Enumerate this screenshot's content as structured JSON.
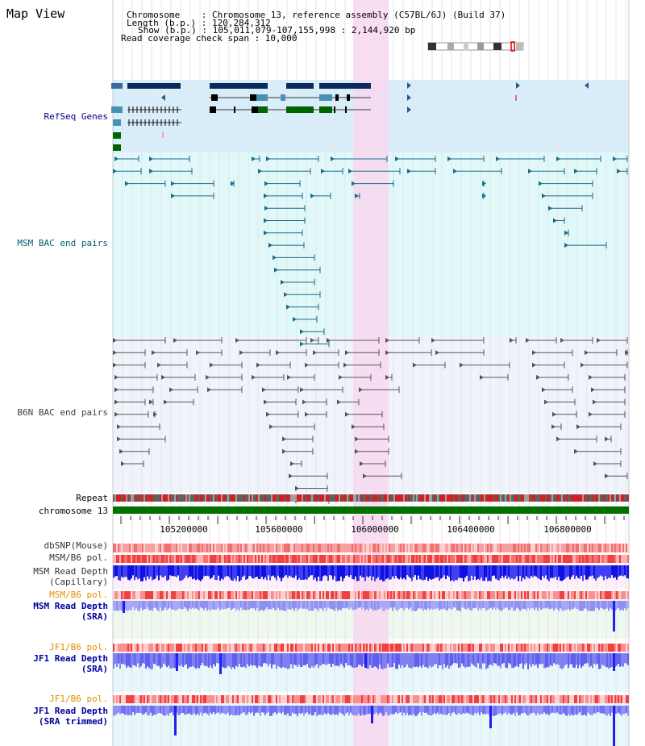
{
  "view": {
    "title": "Map View",
    "info": {
      "chromosome": "Chromosome    : Chromosome 13, reference assembly (C57BL/6J) (Build 37)",
      "length": "Length (b.p.) : 120,284,312",
      "show": "Show (b.p.) : 105,011,079-107,155,998 : 2,144,920 bp",
      "coverage": "Read coverage check span : 10,000"
    }
  },
  "tracks": {
    "refseq": {
      "label": "RefSeq Genes",
      "color": "#000080"
    },
    "msm_bac": {
      "label": "MSM BAC end pairs",
      "color": "#006070"
    },
    "b6n_bac": {
      "label": "B6N BAC end pairs",
      "color": "#404040"
    },
    "repeat": {
      "label": "Repeat"
    },
    "chromosome": {
      "label": "chromosome 13"
    },
    "dbsnp": {
      "label": "dbSNP(Mouse)"
    },
    "msm_b6_pol": {
      "label": "MSM/B6 pol."
    },
    "msm_read_depth_cap": {
      "label": "MSM Read Depth\n(Capillary)"
    },
    "msm_b6_pol_2": {
      "label": "MSM/B6 pol."
    },
    "msm_read_depth_sra": {
      "label": "MSM Read Depth\n(SRA)"
    },
    "jf1_b6_pol": {
      "label": "JF1/B6 pol."
    },
    "jf1_read_depth_sra": {
      "label": "JF1 Read Depth\n(SRA)"
    },
    "jf1_b6_pol_2": {
      "label": "JF1/B6 pol."
    },
    "jf1_read_depth_trimmed": {
      "label": "JF1 Read Depth\n(SRA trimmed)"
    }
  },
  "axis": {
    "ticks": [
      "105200000",
      "105600000",
      "106000000",
      "106400000",
      "106800000"
    ]
  },
  "colors": {
    "highlight": "#f8d8f0",
    "refseq_bg": "#d8eefa",
    "msm_bg": "#e0f8f8",
    "b6n_bg": "#f0f4fa",
    "gene_dark": "#0a2a5a",
    "gene_green": "#006400",
    "msm_line": "#1a6a8a",
    "b6n_line": "#555555",
    "chromosome": "#007000",
    "depth_blue": "#2020f0",
    "depth_light": "#8080f0",
    "pol_orange": "#e09000"
  }
}
